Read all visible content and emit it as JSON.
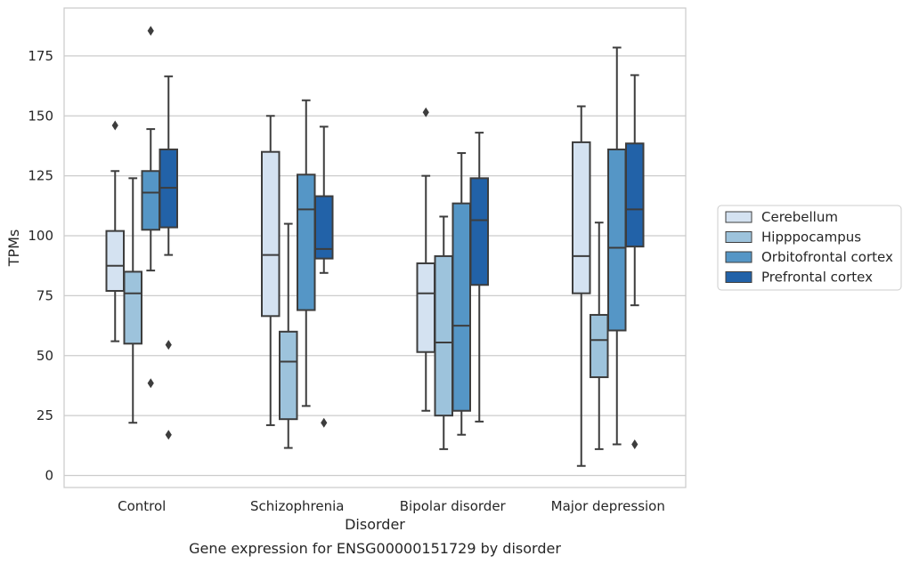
{
  "chart_data": {
    "type": "box",
    "title": "",
    "caption": "Gene expression for ENSG00000151729 by disorder",
    "xlabel": "Disorder",
    "ylabel": "TPMs",
    "ylim": [
      -5,
      195
    ],
    "yticks": [
      0,
      25,
      50,
      75,
      100,
      125,
      150,
      175
    ],
    "grid": "horizontal",
    "legend_position": "right",
    "categories": [
      "Control",
      "Schizophrenia",
      "Bipolar disorder",
      "Major depression"
    ],
    "series": [
      {
        "name": "Cerebellum",
        "color": "#d4e2f1",
        "boxes": [
          {
            "whisker_low": 56,
            "q1": 77,
            "median": 87.5,
            "q3": 102,
            "whisker_high": 127,
            "outliers": [
              146
            ]
          },
          {
            "whisker_low": 21,
            "q1": 66.5,
            "median": 92,
            "q3": 135,
            "whisker_high": 150,
            "outliers": []
          },
          {
            "whisker_low": 27,
            "q1": 51.5,
            "median": 76,
            "q3": 88.5,
            "whisker_high": 125,
            "outliers": [
              151.5
            ]
          },
          {
            "whisker_low": 4,
            "q1": 76,
            "median": 91.5,
            "q3": 139,
            "whisker_high": 154,
            "outliers": []
          }
        ]
      },
      {
        "name": "Hipppocampus",
        "color": "#9dc3dc",
        "boxes": [
          {
            "whisker_low": 22,
            "q1": 55,
            "median": 76,
            "q3": 85,
            "whisker_high": 124,
            "outliers": []
          },
          {
            "whisker_low": 11.5,
            "q1": 23.5,
            "median": 47.5,
            "q3": 60,
            "whisker_high": 105,
            "outliers": []
          },
          {
            "whisker_low": 11,
            "q1": 25,
            "median": 55.5,
            "q3": 91.5,
            "whisker_high": 108,
            "outliers": []
          },
          {
            "whisker_low": 11,
            "q1": 41,
            "median": 56.5,
            "q3": 67,
            "whisker_high": 105.5,
            "outliers": []
          }
        ]
      },
      {
        "name": "Orbitofrontal cortex",
        "color": "#5596c6",
        "boxes": [
          {
            "whisker_low": 85.5,
            "q1": 102.5,
            "median": 118,
            "q3": 127,
            "whisker_high": 144.5,
            "outliers": [
              38.5,
              185.5
            ]
          },
          {
            "whisker_low": 29,
            "q1": 69,
            "median": 111,
            "q3": 125.5,
            "whisker_high": 156.5,
            "outliers": []
          },
          {
            "whisker_low": 17,
            "q1": 27,
            "median": 62.5,
            "q3": 113.5,
            "whisker_high": 134.5,
            "outliers": []
          },
          {
            "whisker_low": 13,
            "q1": 60.5,
            "median": 95,
            "q3": 136,
            "whisker_high": 178.5,
            "outliers": []
          }
        ]
      },
      {
        "name": "Prefrontal cortex",
        "color": "#2262a8",
        "boxes": [
          {
            "whisker_low": 92,
            "q1": 103.5,
            "median": 120,
            "q3": 136,
            "whisker_high": 166.5,
            "outliers": [
              54.5,
              17
            ]
          },
          {
            "whisker_low": 84.5,
            "q1": 90.5,
            "median": 94.5,
            "q3": 116.5,
            "whisker_high": 145.5,
            "outliers": [
              22
            ]
          },
          {
            "whisker_low": 22.5,
            "q1": 79.5,
            "median": 106.5,
            "q3": 124,
            "whisker_high": 143,
            "outliers": []
          },
          {
            "whisker_low": 71,
            "q1": 95.5,
            "median": 111,
            "q3": 138.5,
            "whisker_high": 167,
            "outliers": [
              13
            ]
          }
        ]
      }
    ]
  }
}
